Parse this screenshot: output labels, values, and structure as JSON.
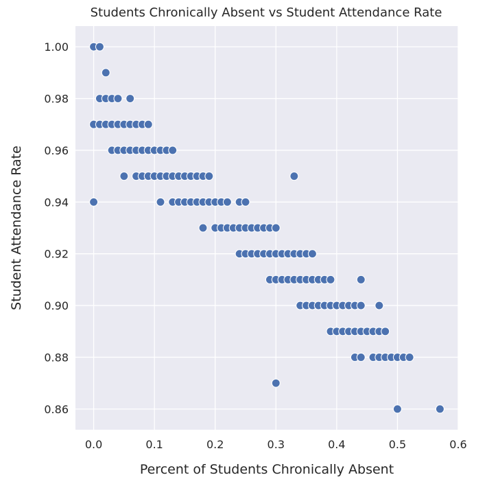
{
  "chart_data": {
    "type": "scatter",
    "title": "Students Chronically Absent vs Student Attendance Rate",
    "xlabel": "Percent of Students Chronically Absent",
    "ylabel": "Student Attendance Rate",
    "xlim": [
      -0.03,
      0.6
    ],
    "ylim": [
      0.852,
      1.008
    ],
    "x_ticks": [
      "0.0",
      "0.1",
      "0.2",
      "0.3",
      "0.4",
      "0.5",
      "0.6"
    ],
    "y_ticks": [
      "0.86",
      "0.88",
      "0.90",
      "0.92",
      "0.94",
      "0.96",
      "0.98",
      "1.00"
    ],
    "grid": true,
    "background_color": "#eaeaf2",
    "point_color": "#4c72b0",
    "points": [
      [
        0.0,
        1.0
      ],
      [
        0.01,
        1.0
      ],
      [
        0.02,
        0.99
      ],
      [
        0.01,
        0.98
      ],
      [
        0.02,
        0.98
      ],
      [
        0.03,
        0.98
      ],
      [
        0.04,
        0.98
      ],
      [
        0.06,
        0.98
      ],
      [
        0.0,
        0.97
      ],
      [
        0.01,
        0.97
      ],
      [
        0.02,
        0.97
      ],
      [
        0.03,
        0.97
      ],
      [
        0.04,
        0.97
      ],
      [
        0.05,
        0.97
      ],
      [
        0.06,
        0.97
      ],
      [
        0.07,
        0.97
      ],
      [
        0.08,
        0.97
      ],
      [
        0.09,
        0.97
      ],
      [
        0.03,
        0.96
      ],
      [
        0.04,
        0.96
      ],
      [
        0.05,
        0.96
      ],
      [
        0.06,
        0.96
      ],
      [
        0.07,
        0.96
      ],
      [
        0.08,
        0.96
      ],
      [
        0.09,
        0.96
      ],
      [
        0.1,
        0.96
      ],
      [
        0.11,
        0.96
      ],
      [
        0.12,
        0.96
      ],
      [
        0.13,
        0.96
      ],
      [
        0.05,
        0.95
      ],
      [
        0.07,
        0.95
      ],
      [
        0.08,
        0.95
      ],
      [
        0.09,
        0.95
      ],
      [
        0.1,
        0.95
      ],
      [
        0.11,
        0.95
      ],
      [
        0.12,
        0.95
      ],
      [
        0.13,
        0.95
      ],
      [
        0.14,
        0.95
      ],
      [
        0.15,
        0.95
      ],
      [
        0.16,
        0.95
      ],
      [
        0.17,
        0.95
      ],
      [
        0.18,
        0.95
      ],
      [
        0.19,
        0.95
      ],
      [
        0.33,
        0.95
      ],
      [
        0.0,
        0.94
      ],
      [
        0.11,
        0.94
      ],
      [
        0.13,
        0.94
      ],
      [
        0.14,
        0.94
      ],
      [
        0.15,
        0.94
      ],
      [
        0.16,
        0.94
      ],
      [
        0.17,
        0.94
      ],
      [
        0.18,
        0.94
      ],
      [
        0.19,
        0.94
      ],
      [
        0.2,
        0.94
      ],
      [
        0.21,
        0.94
      ],
      [
        0.22,
        0.94
      ],
      [
        0.24,
        0.94
      ],
      [
        0.25,
        0.94
      ],
      [
        0.18,
        0.93
      ],
      [
        0.2,
        0.93
      ],
      [
        0.21,
        0.93
      ],
      [
        0.22,
        0.93
      ],
      [
        0.23,
        0.93
      ],
      [
        0.24,
        0.93
      ],
      [
        0.25,
        0.93
      ],
      [
        0.26,
        0.93
      ],
      [
        0.27,
        0.93
      ],
      [
        0.28,
        0.93
      ],
      [
        0.29,
        0.93
      ],
      [
        0.3,
        0.93
      ],
      [
        0.24,
        0.92
      ],
      [
        0.25,
        0.92
      ],
      [
        0.26,
        0.92
      ],
      [
        0.27,
        0.92
      ],
      [
        0.28,
        0.92
      ],
      [
        0.29,
        0.92
      ],
      [
        0.3,
        0.92
      ],
      [
        0.31,
        0.92
      ],
      [
        0.32,
        0.92
      ],
      [
        0.33,
        0.92
      ],
      [
        0.34,
        0.92
      ],
      [
        0.35,
        0.92
      ],
      [
        0.36,
        0.92
      ],
      [
        0.29,
        0.91
      ],
      [
        0.3,
        0.91
      ],
      [
        0.31,
        0.91
      ],
      [
        0.32,
        0.91
      ],
      [
        0.33,
        0.91
      ],
      [
        0.34,
        0.91
      ],
      [
        0.35,
        0.91
      ],
      [
        0.36,
        0.91
      ],
      [
        0.37,
        0.91
      ],
      [
        0.38,
        0.91
      ],
      [
        0.39,
        0.91
      ],
      [
        0.44,
        0.91
      ],
      [
        0.34,
        0.9
      ],
      [
        0.35,
        0.9
      ],
      [
        0.36,
        0.9
      ],
      [
        0.37,
        0.9
      ],
      [
        0.38,
        0.9
      ],
      [
        0.39,
        0.9
      ],
      [
        0.4,
        0.9
      ],
      [
        0.41,
        0.9
      ],
      [
        0.42,
        0.9
      ],
      [
        0.43,
        0.9
      ],
      [
        0.44,
        0.9
      ],
      [
        0.47,
        0.9
      ],
      [
        0.39,
        0.89
      ],
      [
        0.4,
        0.89
      ],
      [
        0.41,
        0.89
      ],
      [
        0.42,
        0.89
      ],
      [
        0.43,
        0.89
      ],
      [
        0.44,
        0.89
      ],
      [
        0.45,
        0.89
      ],
      [
        0.46,
        0.89
      ],
      [
        0.47,
        0.89
      ],
      [
        0.48,
        0.89
      ],
      [
        0.43,
        0.88
      ],
      [
        0.44,
        0.88
      ],
      [
        0.46,
        0.88
      ],
      [
        0.47,
        0.88
      ],
      [
        0.48,
        0.88
      ],
      [
        0.49,
        0.88
      ],
      [
        0.5,
        0.88
      ],
      [
        0.51,
        0.88
      ],
      [
        0.52,
        0.88
      ],
      [
        0.3,
        0.87
      ],
      [
        0.5,
        0.86
      ],
      [
        0.57,
        0.86
      ]
    ]
  }
}
